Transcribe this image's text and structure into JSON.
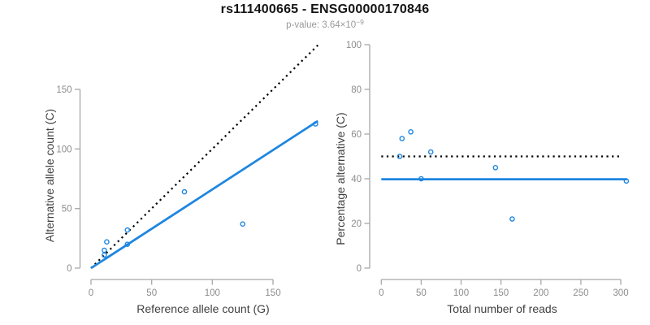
{
  "header": {
    "title": "rs111400665 - ENSG00000170846",
    "subtitle_main": "p-value: 3.64×10",
    "subtitle_exponent": "−9"
  },
  "colors": {
    "accent_blue": "#1e86e0",
    "dotted_line": "#000000",
    "axis_line": "#a8a8a8",
    "tick_label": "#8c8c8c",
    "axis_title": "#404040",
    "title": "#141414",
    "subtitle": "#999999"
  },
  "chart_data": [
    {
      "type": "scatter",
      "name": "allele-counts",
      "xlabel": "Reference allele count (G)",
      "ylabel": "Alternative allele count (C)",
      "xticks": [
        0,
        50,
        100,
        150
      ],
      "yticks": [
        0,
        50,
        100,
        150
      ],
      "xlim": [
        0,
        187
      ],
      "ylim": [
        0,
        187
      ],
      "grid": false,
      "legend": "none",
      "points": [
        [
          11,
          11
        ],
        [
          11,
          15
        ],
        [
          13,
          22
        ],
        [
          30,
          20
        ],
        [
          30,
          32
        ],
        [
          77,
          64
        ],
        [
          125,
          37
        ],
        [
          185,
          121
        ]
      ],
      "lines": [
        {
          "name": "identity-line",
          "style": "dotted",
          "color": "dotted_line",
          "x": [
            0,
            187
          ],
          "y": [
            0,
            187
          ]
        },
        {
          "name": "fit-line",
          "style": "solid",
          "color": "accent_blue",
          "x": [
            0,
            187
          ],
          "y": [
            0,
            123.5
          ]
        }
      ]
    },
    {
      "type": "scatter",
      "name": "percentage-vs-reads",
      "xlabel": "Total number of reads",
      "ylabel": "Percentage alternative (C)",
      "xticks": [
        0,
        50,
        100,
        150,
        200,
        250,
        300
      ],
      "yticks": [
        0,
        20,
        40,
        60,
        80,
        100
      ],
      "xlim": [
        0,
        310
      ],
      "ylim": [
        0,
        100
      ],
      "grid": false,
      "legend": "none",
      "points": [
        [
          23,
          50
        ],
        [
          26,
          58
        ],
        [
          37,
          61
        ],
        [
          50,
          40
        ],
        [
          62,
          52
        ],
        [
          143,
          45
        ],
        [
          164,
          22
        ],
        [
          307,
          39
        ]
      ],
      "lines": [
        {
          "name": "expected-50pct-line",
          "style": "dotted",
          "color": "dotted_line",
          "x": [
            0,
            302
          ],
          "y": [
            50,
            50
          ]
        },
        {
          "name": "fit-line",
          "style": "solid",
          "color": "accent_blue",
          "x": [
            0,
            308
          ],
          "y": [
            39.8,
            39.8
          ]
        }
      ]
    }
  ]
}
